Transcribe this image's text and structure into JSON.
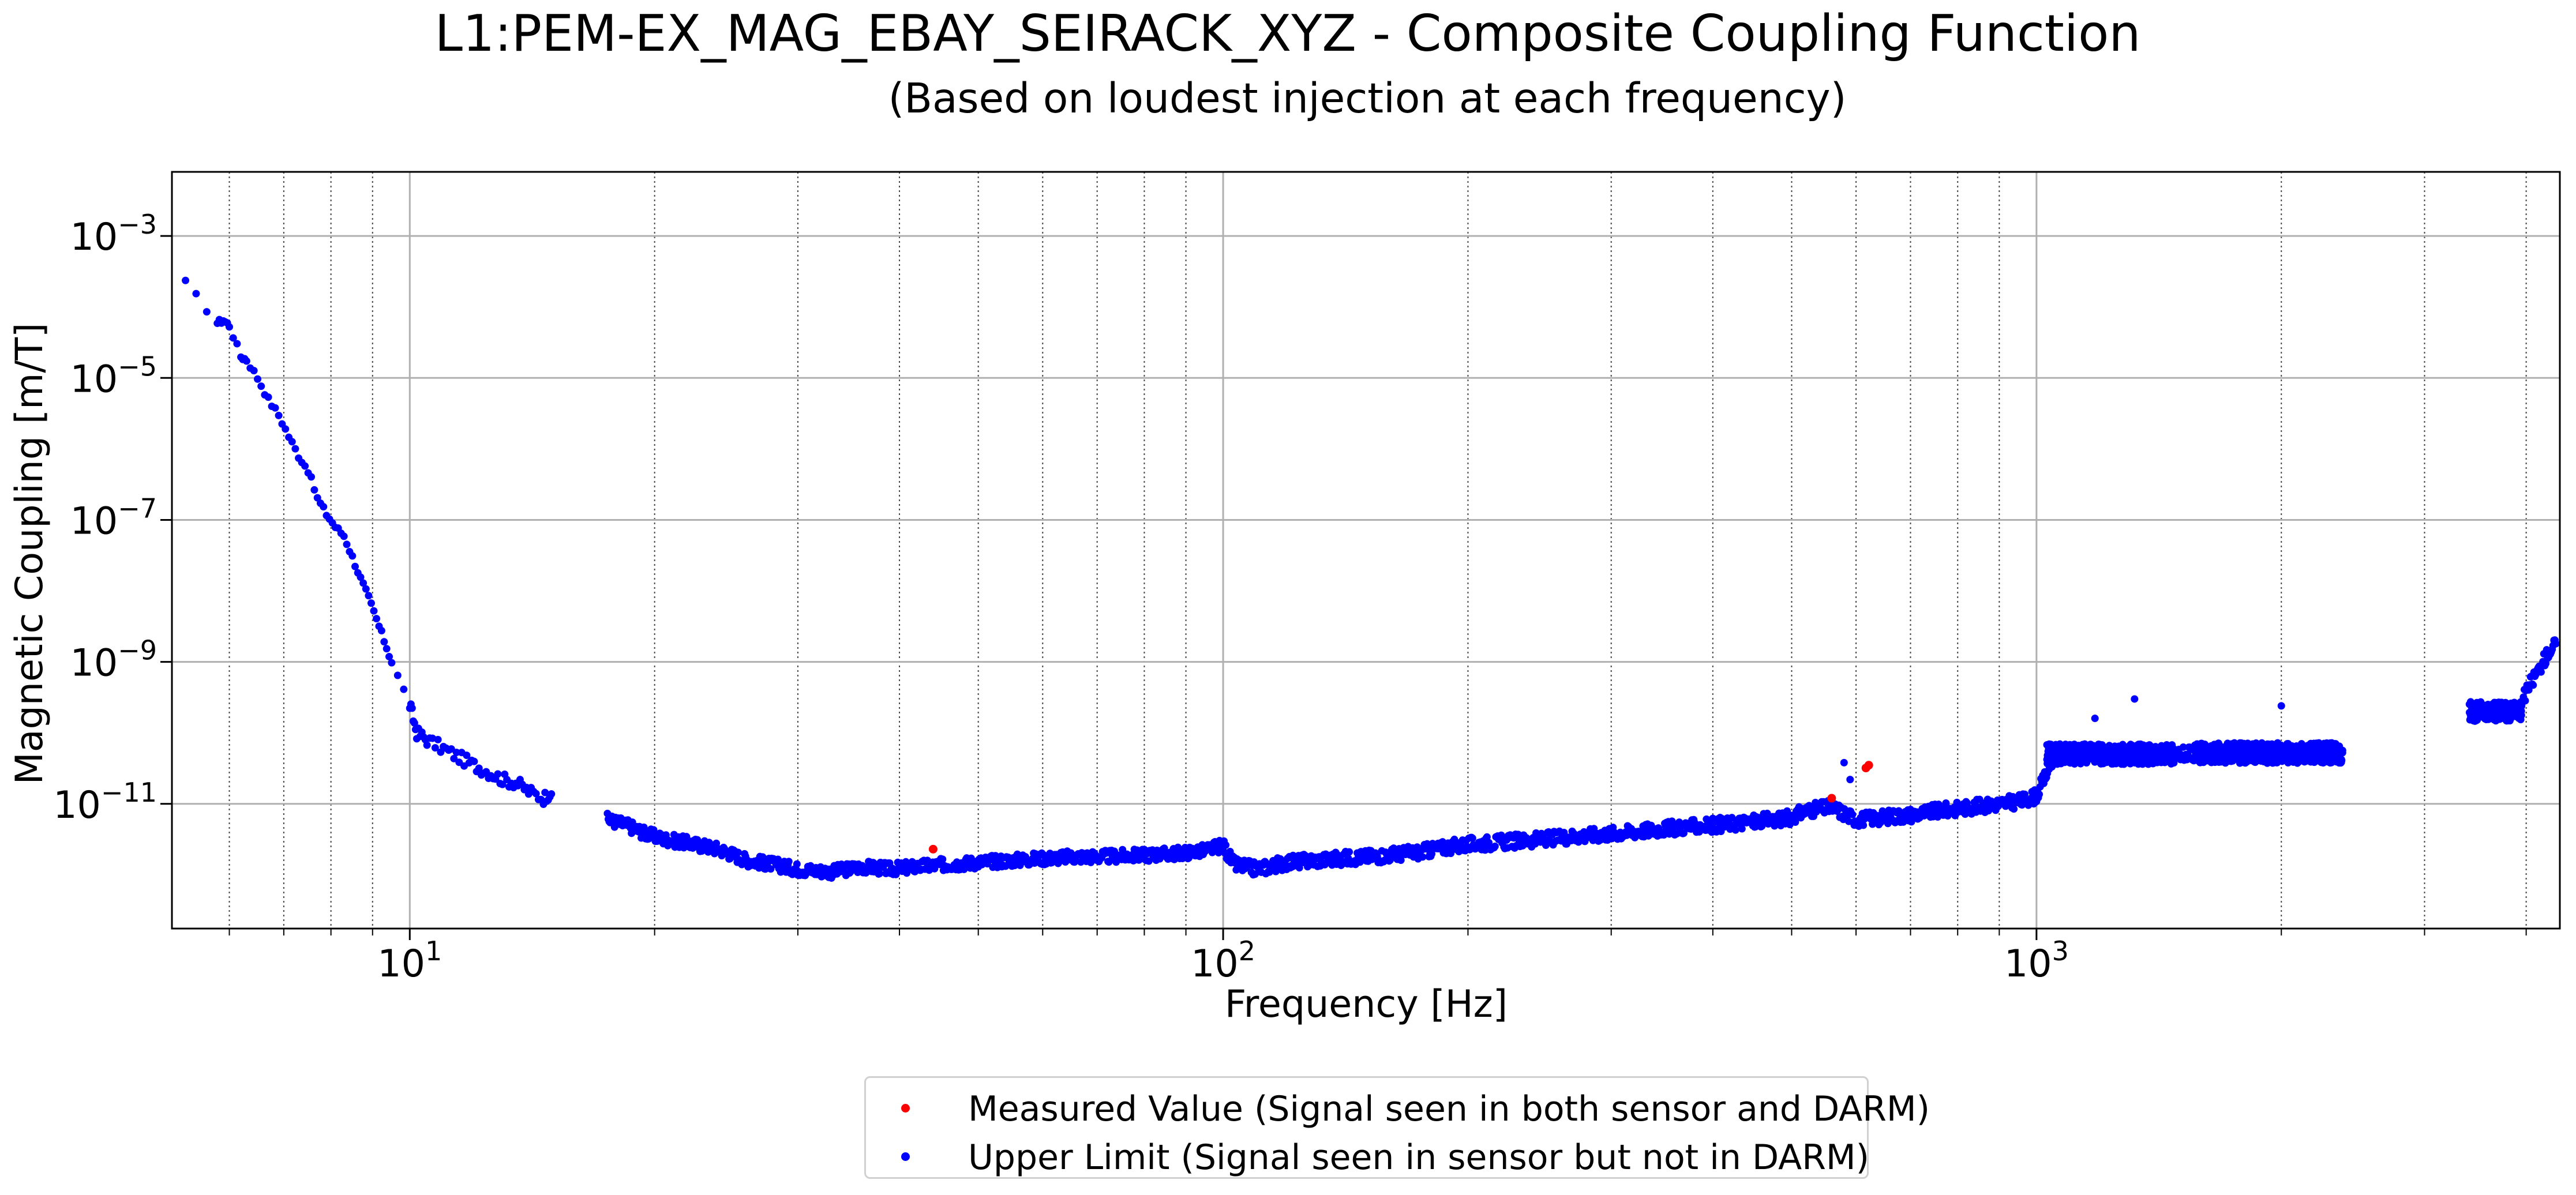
{
  "chart_data": {
    "type": "scatter",
    "title": "L1:PEM-EX_MAG_EBAY_SEIRACK_XYZ - Composite Coupling Function",
    "subtitle": "(Based on loudest injection at each frequency)",
    "xlabel": "Frequency [Hz]",
    "ylabel": "Magnetic Coupling [m/T]",
    "xscale": "log",
    "yscale": "log",
    "xlim": [
      5.1,
      4400
    ],
    "ylim": [
      1.75e-13,
      0.008
    ],
    "grid": true,
    "legend_position": "bottom-center",
    "x_ticks": [
      {
        "base": "10",
        "exp": "1",
        "value": 10
      },
      {
        "base": "10",
        "exp": "2",
        "value": 100
      },
      {
        "base": "10",
        "exp": "3",
        "value": 1000
      }
    ],
    "y_ticks": [
      {
        "base": "10",
        "exp": "−3",
        "value": 0.001
      },
      {
        "base": "10",
        "exp": "−5",
        "value": 1e-05
      },
      {
        "base": "10",
        "exp": "−7",
        "value": 1e-07
      },
      {
        "base": "10",
        "exp": "−9",
        "value": 1e-09
      },
      {
        "base": "10",
        "exp": "−11",
        "value": 1e-11
      }
    ],
    "series": [
      {
        "name": "Measured Value (Signal seen in both sensor and DARM)",
        "color": "#ff0000",
        "points": [
          [
            44,
            2.3e-12
          ],
          [
            560,
            1.2e-11
          ],
          [
            617,
            3.2e-11
          ],
          [
            622,
            3.5e-11
          ]
        ]
      },
      {
        "name": "Upper Limit (Signal seen in sensor but not in DARM)",
        "color": "#0000ff",
        "points": [
          [
            5.3,
            0.00022
          ],
          [
            5.8,
            6e-05
          ],
          [
            5.9,
            6.5e-05
          ],
          [
            6.0,
            5.5e-05
          ],
          [
            6.2,
            2e-05
          ],
          [
            6.3,
            1.8e-05
          ],
          [
            6.5,
            1e-05
          ],
          [
            6.7,
            5e-06
          ],
          [
            6.9,
            3e-06
          ],
          [
            7.1,
            1.5e-06
          ],
          [
            7.3,
            8e-07
          ],
          [
            7.5,
            5e-07
          ],
          [
            7.7,
            2e-07
          ],
          [
            7.9,
            1.2e-07
          ],
          [
            8.1,
            8e-08
          ],
          [
            8.3,
            6e-08
          ],
          [
            8.5,
            3e-08
          ],
          [
            8.7,
            1.5e-08
          ],
          [
            8.9,
            8e-09
          ],
          [
            9.1,
            4e-09
          ],
          [
            9.3,
            2e-09
          ],
          [
            9.5,
            1e-09
          ],
          [
            10.0,
            2.5e-10
          ],
          [
            10.2,
            1e-10
          ],
          [
            10.5,
            8e-11
          ],
          [
            11.0,
            6e-11
          ],
          [
            11.5,
            4.5e-11
          ],
          [
            12.0,
            3.5e-11
          ],
          [
            12.5,
            2.8e-11
          ],
          [
            13.0,
            2.2e-11
          ],
          [
            13.5,
            2e-11
          ],
          [
            14.0,
            1.5e-11
          ],
          [
            14.6,
            1.2e-11
          ],
          [
            15.0,
            1.6e-11
          ],
          [
            17.5,
            6e-12
          ],
          [
            18.5,
            5e-12
          ],
          [
            19.5,
            3.8e-12
          ],
          [
            20.5,
            3.2e-12
          ],
          [
            22.0,
            2.8e-12
          ],
          [
            24.0,
            2.3e-12
          ],
          [
            26.0,
            1.6e-12
          ],
          [
            28.0,
            1.4e-12
          ],
          [
            30.0,
            1.2e-12
          ],
          [
            33.0,
            1.1e-12
          ],
          [
            36.0,
            1.3e-12
          ],
          [
            39.0,
            1.2e-12
          ],
          [
            42.0,
            1.3e-12
          ],
          [
            46.0,
            1.4e-12
          ],
          [
            50.0,
            1.5e-12
          ],
          [
            55.0,
            1.6e-12
          ],
          [
            60.0,
            1.7e-12
          ],
          [
            66.0,
            1.8e-12
          ],
          [
            72.0,
            1.8e-12
          ],
          [
            80.0,
            1.9e-12
          ],
          [
            88.0,
            2e-12
          ],
          [
            95.0,
            2.2e-12
          ],
          [
            100.0,
            2.6e-12
          ],
          [
            103.0,
            1.4e-12
          ],
          [
            110.0,
            1.2e-12
          ],
          [
            120.0,
            1.5e-12
          ],
          [
            130.0,
            1.6e-12
          ],
          [
            140.0,
            1.7e-12
          ],
          [
            150.0,
            1.8e-12
          ],
          [
            160.0,
            1.9e-12
          ],
          [
            175.0,
            2.1e-12
          ],
          [
            190.0,
            2.5e-12
          ],
          [
            210.0,
            2.8e-12
          ],
          [
            230.0,
            3e-12
          ],
          [
            250.0,
            3.2e-12
          ],
          [
            270.0,
            3.5e-12
          ],
          [
            300.0,
            3.8e-12
          ],
          [
            330.0,
            4.2e-12
          ],
          [
            360.0,
            4.6e-12
          ],
          [
            400.0,
            5e-12
          ],
          [
            440.0,
            5.5e-12
          ],
          [
            480.0,
            6e-12
          ],
          [
            500.0,
            6.5e-12
          ],
          [
            520.0,
            8e-12
          ],
          [
            560.0,
            9e-12
          ],
          [
            600.0,
            6e-12
          ],
          [
            650.0,
            6.5e-12
          ],
          [
            700.0,
            7e-12
          ],
          [
            760.0,
            8e-12
          ],
          [
            830.0,
            9e-12
          ],
          [
            900.0,
            1e-11
          ],
          [
            960.0,
            1.1e-11
          ],
          [
            1000.0,
            1.3e-11
          ],
          [
            1050.0,
            4.5e-11
          ],
          [
            1150.0,
            5e-11
          ],
          [
            1250.0,
            5e-11
          ],
          [
            1350.0,
            5e-11
          ],
          [
            1450.0,
            5e-11
          ],
          [
            1600.0,
            5e-11
          ],
          [
            1750.0,
            5e-11
          ],
          [
            1900.0,
            5e-11
          ],
          [
            2050.0,
            5e-11
          ],
          [
            2200.0,
            5e-11
          ],
          [
            2350.0,
            5e-11
          ],
          [
            3450.0,
            2e-10
          ],
          [
            3600.0,
            2e-10
          ],
          [
            3750.0,
            2e-10
          ],
          [
            3900.0,
            2e-10
          ],
          [
            4050.0,
            5e-10
          ],
          [
            4150.0,
            8e-10
          ],
          [
            4250.0,
            1.3e-09
          ],
          [
            4350.0,
            1.8e-09
          ]
        ],
        "bands": [
          {
            "x_from": 1030,
            "x_to": 1480,
            "y_center": 5e-11,
            "spread_dex": 0.26
          },
          {
            "x_from": 1560,
            "x_to": 2000,
            "y_center": 5.2e-11,
            "spread_dex": 0.26
          },
          {
            "x_from": 2030,
            "x_to": 2380,
            "y_center": 5.2e-11,
            "spread_dex": 0.26
          },
          {
            "x_from": 3400,
            "x_to": 3950,
            "y_center": 2e-10,
            "spread_dex": 0.25
          }
        ],
        "outliers": [
          [
            1320,
            3e-10
          ],
          [
            1180,
            1.6e-10
          ],
          [
            2000,
            2.4e-10
          ],
          [
            590,
            2.2e-11
          ],
          [
            580,
            3.8e-11
          ]
        ]
      }
    ]
  }
}
